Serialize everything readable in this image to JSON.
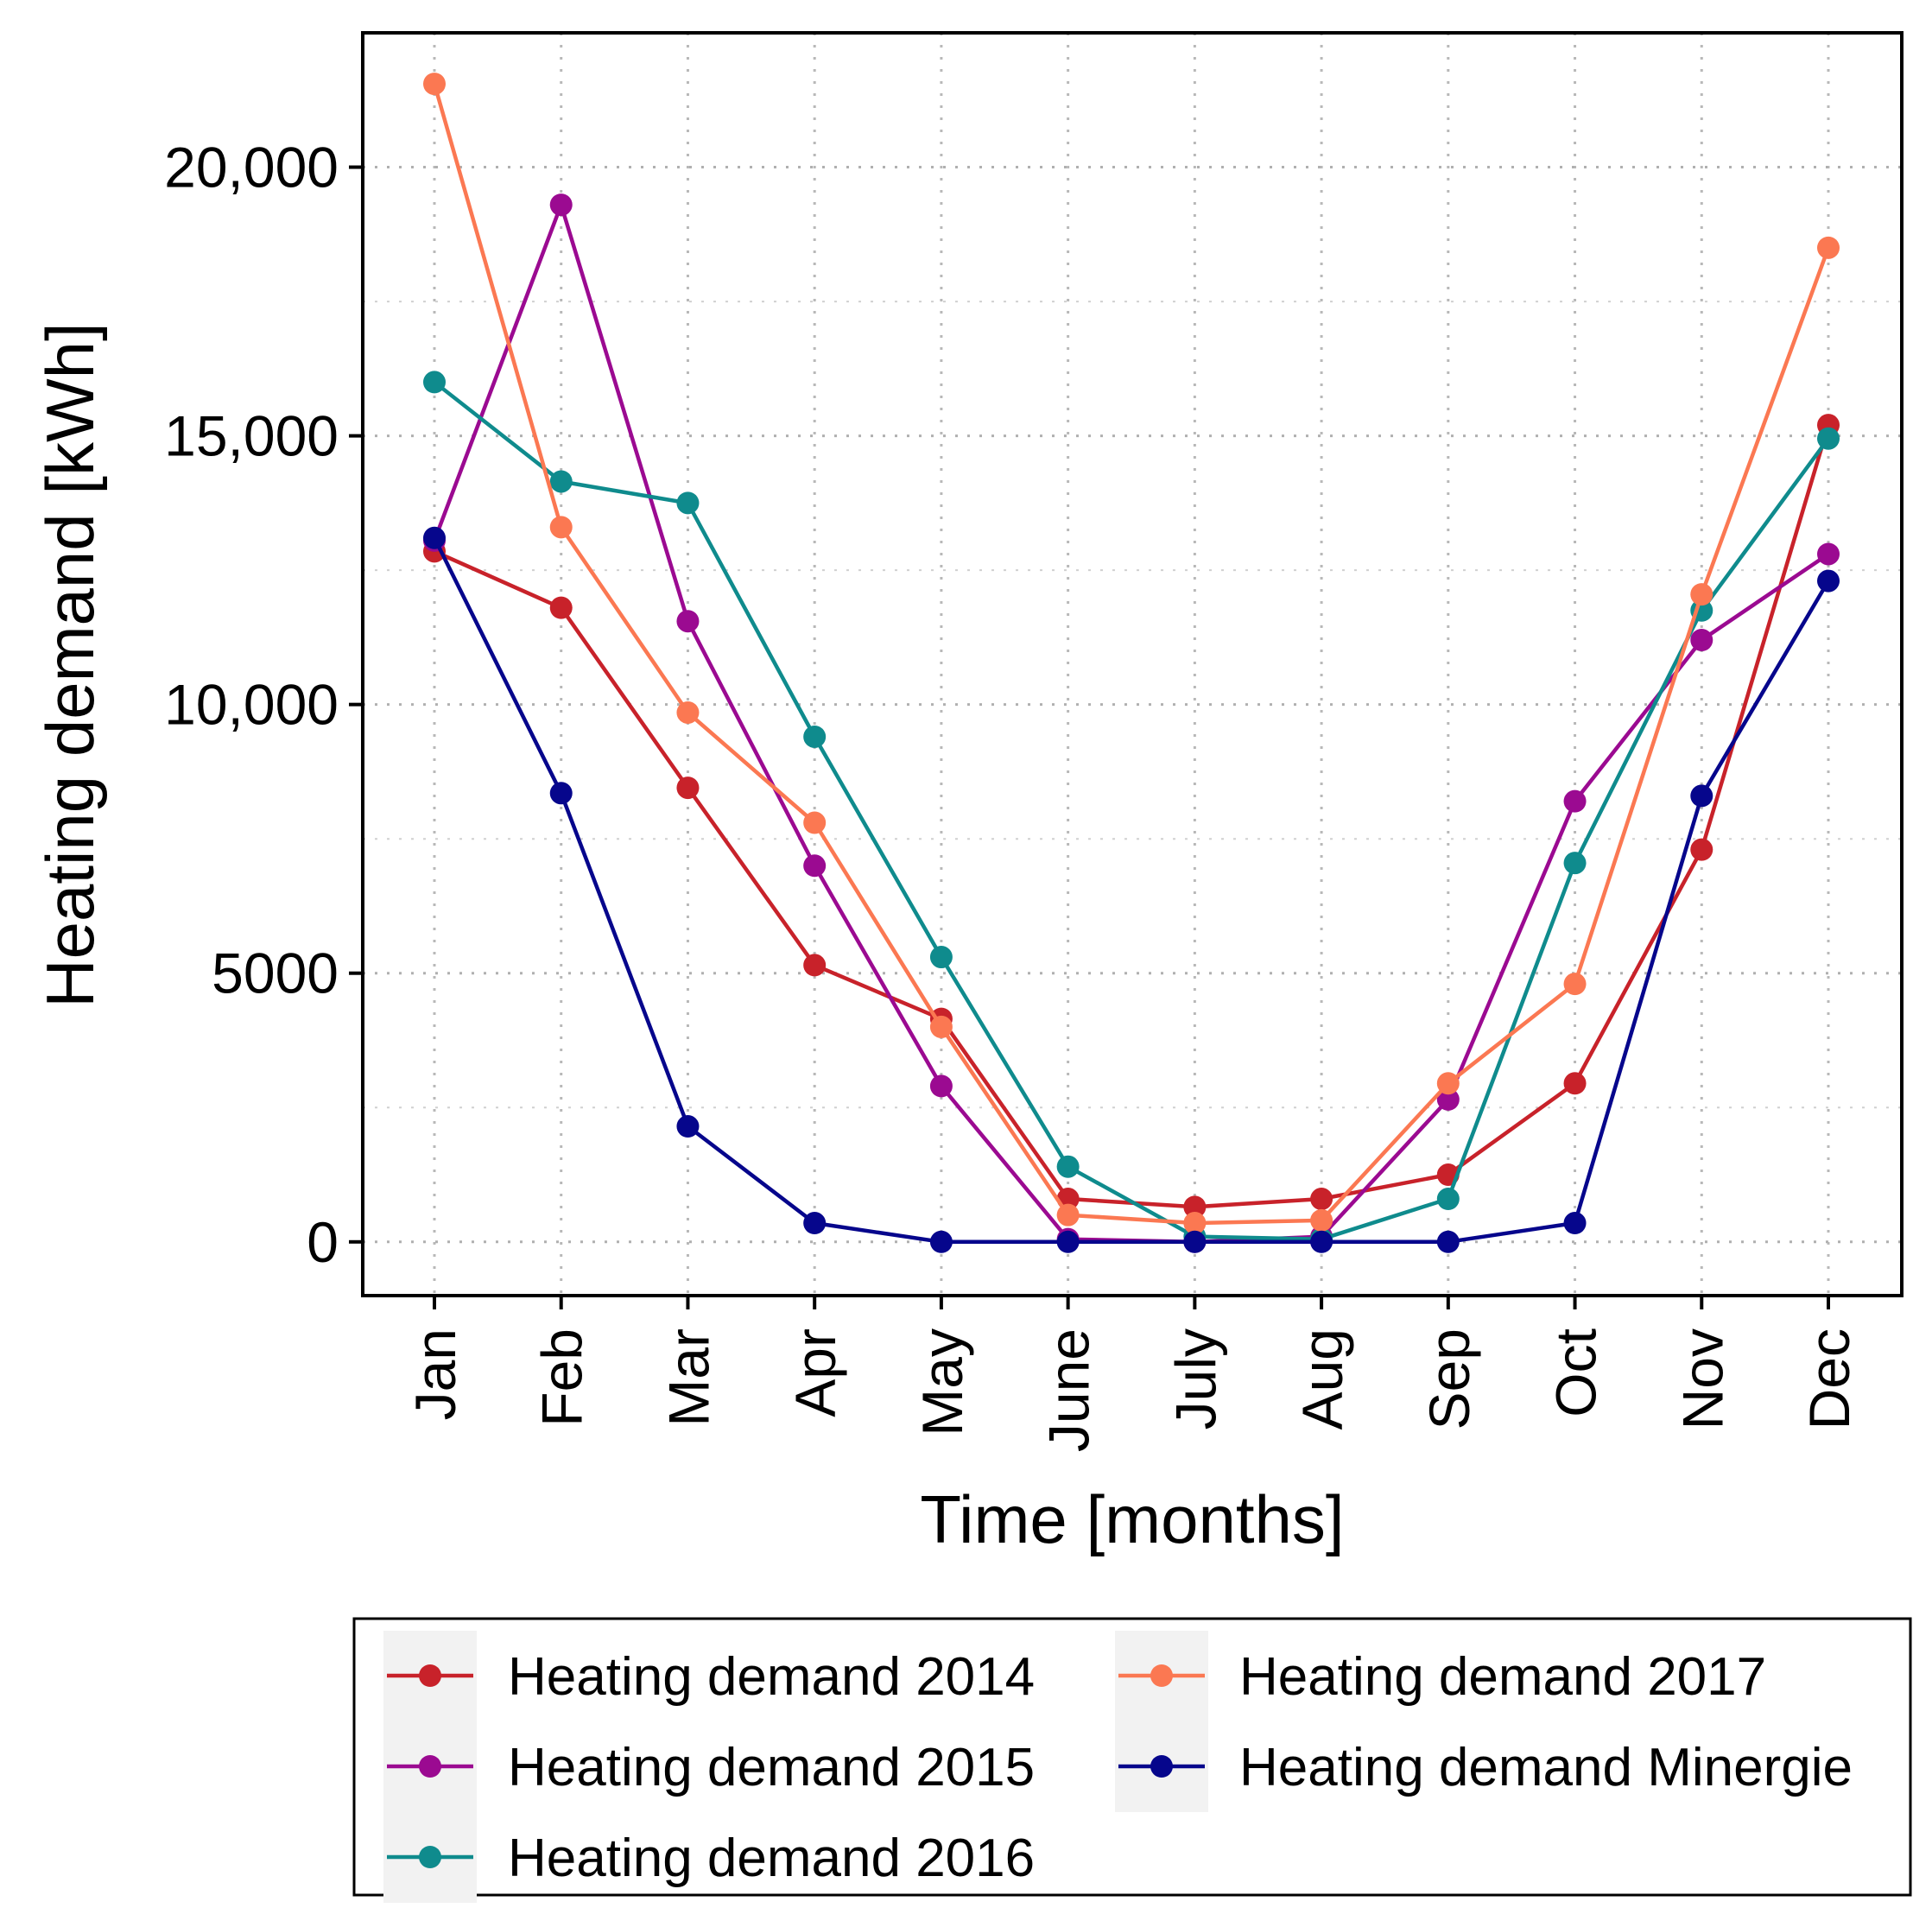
{
  "chart_data": {
    "type": "line",
    "title": "",
    "xlabel": "Time [months]",
    "ylabel": "Heating demand [kWh]",
    "categories": [
      "Jan",
      "Feb",
      "Mar",
      "Apr",
      "May",
      "June",
      "July",
      "Aug",
      "Sep",
      "Oct",
      "Nov",
      "Dec"
    ],
    "ylim": [
      -1000,
      22500
    ],
    "yticks": [
      0,
      5000,
      10000,
      15000,
      20000
    ],
    "ytick_labels": [
      "0",
      "5000",
      "10,000",
      "15,000",
      "20,000"
    ],
    "grid": true,
    "legend_position": "bottom",
    "series": [
      {
        "name": "Heating demand 2014",
        "color": "#c8222a",
        "values": [
          12850,
          11800,
          8450,
          5150,
          4150,
          800,
          650,
          800,
          1250,
          2950,
          7300,
          15200
        ]
      },
      {
        "name": "Heating demand 2015",
        "color": "#9b0a91",
        "values": [
          13050,
          19300,
          11550,
          7000,
          2900,
          50,
          0,
          100,
          2650,
          8200,
          11200,
          12800
        ]
      },
      {
        "name": "Heating demand 2016",
        "color": "#0f8b8d",
        "values": [
          16000,
          14150,
          13750,
          9400,
          5300,
          1400,
          100,
          50,
          800,
          7050,
          11750,
          14950
        ]
      },
      {
        "name": "Heating demand 2017",
        "color": "#fb7852",
        "values": [
          21550,
          13300,
          9850,
          7800,
          4000,
          500,
          350,
          400,
          2950,
          4800,
          12050,
          18500
        ]
      },
      {
        "name": "Heating demand Minergie",
        "color": "#06068c",
        "values": [
          13100,
          8350,
          2150,
          350,
          0,
          0,
          0,
          0,
          0,
          350,
          8300,
          12300
        ]
      }
    ]
  }
}
